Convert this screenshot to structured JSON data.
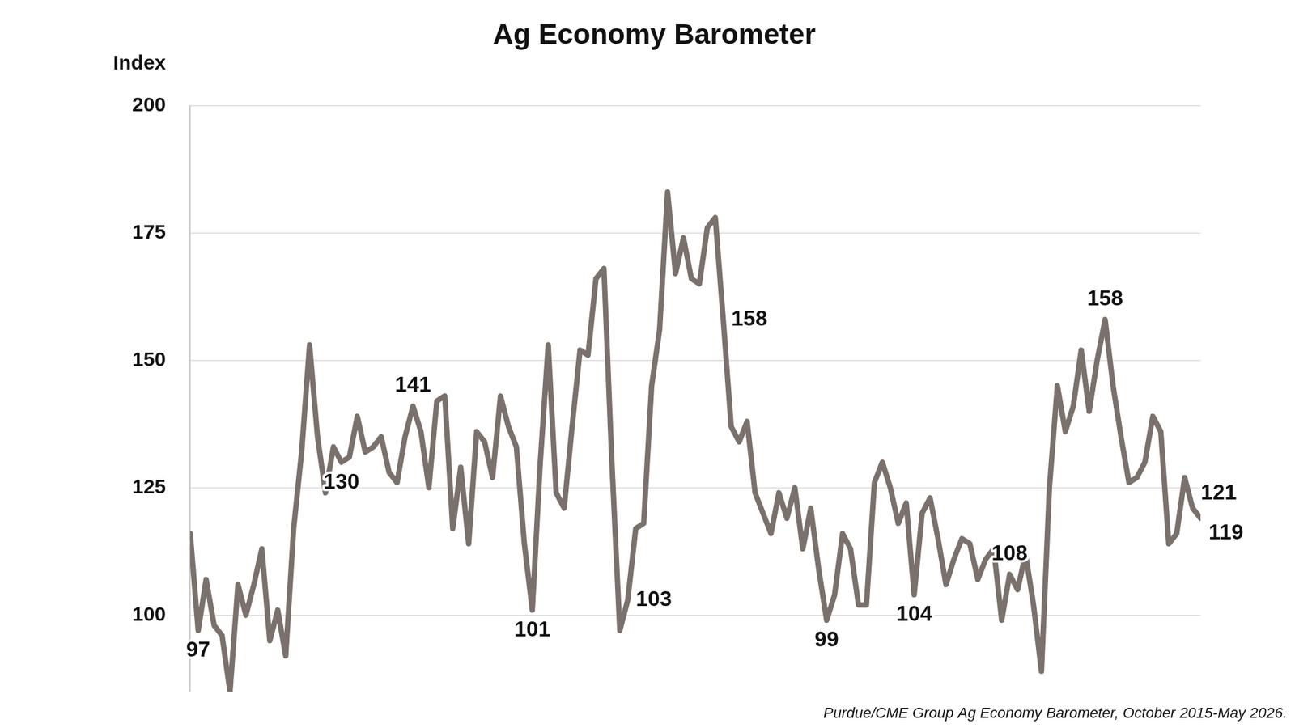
{
  "chart_data": {
    "type": "line",
    "title": "Ag Economy Barometer",
    "ylabel": "Index",
    "source": "Purdue/CME Group Ag Economy Barometer, October 2015-May 2026.",
    "categories": [
      null,
      null,
      null,
      null,
      null,
      null,
      null,
      null,
      null,
      null,
      null,
      null,
      null,
      null,
      null,
      null,
      null,
      null,
      null,
      null,
      null,
      null,
      null,
      null,
      null,
      null,
      null,
      null,
      null,
      null,
      null,
      null,
      null,
      null,
      null,
      null,
      null,
      null,
      null,
      null,
      null,
      null,
      null,
      null,
      null,
      null,
      null,
      null,
      null,
      null,
      null,
      null,
      null,
      null,
      null,
      null,
      null,
      null,
      null,
      null,
      null,
      null,
      null,
      null,
      null,
      null,
      null,
      null,
      null,
      null,
      null,
      null,
      null,
      null,
      null,
      null,
      null,
      null,
      null,
      null,
      null,
      null,
      null,
      null,
      null,
      null,
      null,
      null,
      null,
      null,
      null,
      null,
      null,
      null,
      null,
      null,
      null,
      null,
      null,
      null,
      null,
      null,
      null,
      null,
      null,
      null,
      null,
      null,
      null,
      null,
      null,
      null,
      null,
      null,
      null,
      null,
      null,
      null,
      null,
      null,
      null,
      null,
      null,
      null,
      null,
      null,
      null,
      null
    ],
    "values": [
      116,
      97,
      107,
      98,
      96,
      85,
      106,
      100,
      106,
      113,
      95,
      101,
      92,
      117,
      132,
      153,
      135,
      124,
      133,
      130,
      131,
      139,
      132,
      133,
      135,
      128,
      126,
      135,
      141,
      136,
      125,
      142,
      143,
      117,
      129,
      114,
      136,
      134,
      127,
      143,
      137,
      133,
      114,
      101,
      130,
      153,
      124,
      121,
      137,
      152,
      151,
      166,
      168,
      130,
      97,
      103,
      117,
      118,
      145,
      156,
      183,
      167,
      174,
      166,
      165,
      176,
      178,
      158,
      137,
      134,
      138,
      124,
      120,
      116,
      124,
      119,
      125,
      113,
      121,
      109,
      99,
      104,
      116,
      113,
      102,
      102,
      126,
      130,
      125,
      118,
      122,
      104,
      120,
      123,
      115,
      106,
      111,
      115,
      114,
      107,
      111,
      113,
      99,
      108,
      105,
      112,
      102,
      89,
      125,
      145,
      136,
      141,
      152,
      140,
      150,
      158,
      145,
      135,
      126,
      127,
      130,
      139,
      136,
      114,
      116,
      127,
      121,
      119
    ],
    "color": "#7a716c",
    "marker": "none",
    "line_style": "solid",
    "ylim": [
      85,
      200
    ],
    "yticks": [
      100,
      125,
      150,
      175,
      200
    ],
    "grid": true,
    "tick_labels": "y",
    "annotations": [
      {
        "index": 1,
        "text": "97"
      },
      {
        "index": 19,
        "text": "130"
      },
      {
        "index": 28,
        "text": "141"
      },
      {
        "index": 43,
        "text": "101"
      },
      {
        "index": 55,
        "text": "103"
      },
      {
        "index": 67,
        "text": "158"
      },
      {
        "index": 80,
        "text": "99"
      },
      {
        "index": 91,
        "text": "104"
      },
      {
        "index": 103,
        "text": "108"
      },
      {
        "index": 115,
        "text": "158"
      },
      {
        "index": 126,
        "text": "121"
      },
      {
        "index": 127,
        "text": "119"
      }
    ]
  }
}
